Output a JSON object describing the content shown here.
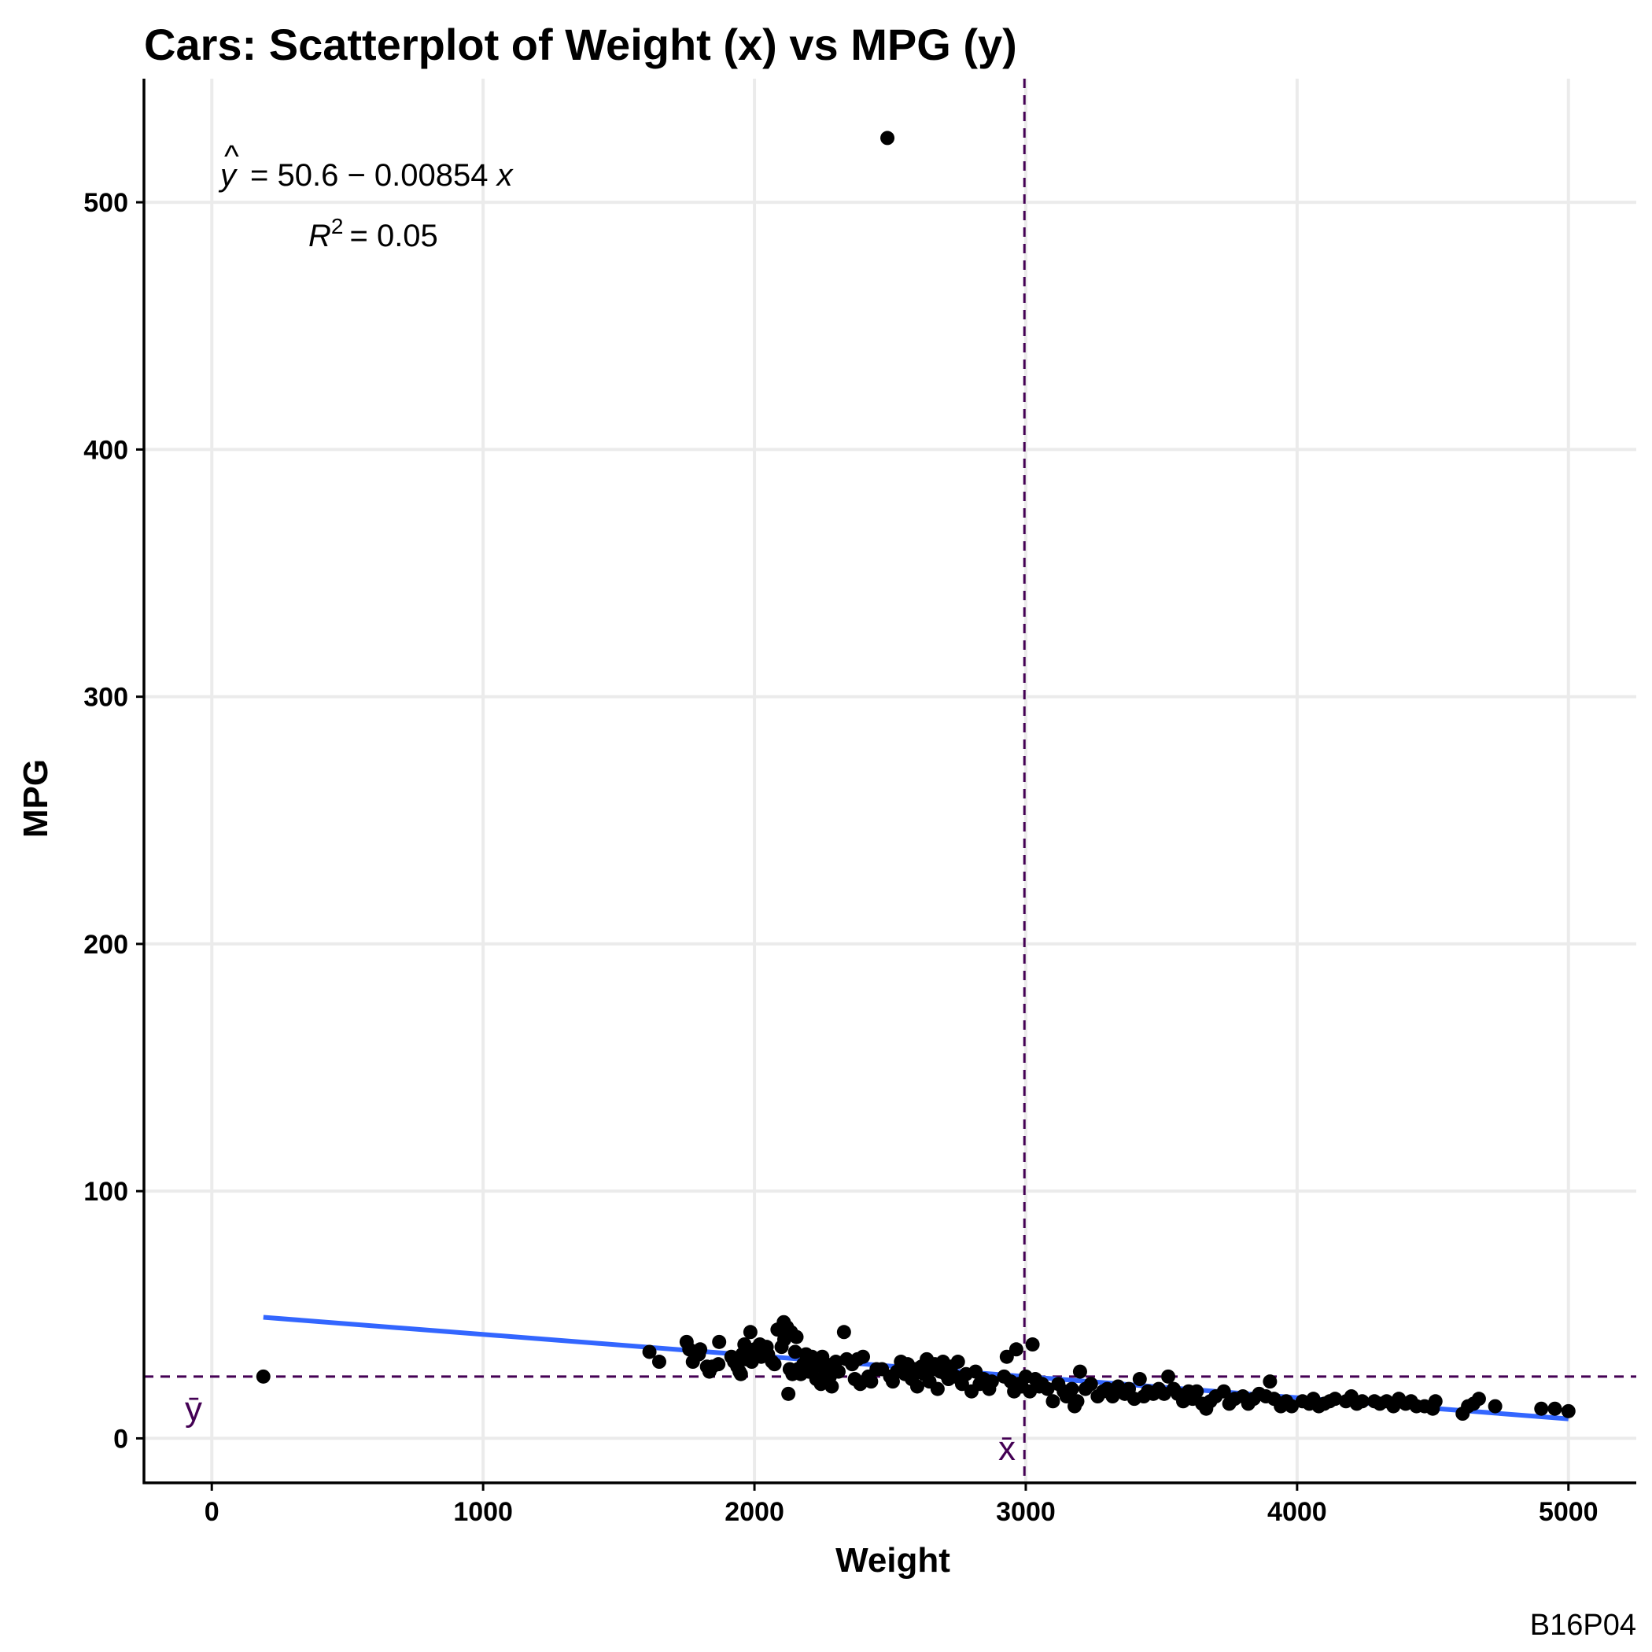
{
  "chart_data": {
    "type": "scatter",
    "title": "Cars: Scatterplot of Weight (x) vs MPG (y)",
    "xlabel": "Weight",
    "ylabel": "MPG",
    "xlim": [
      -250,
      5250
    ],
    "ylim": [
      -18,
      550
    ],
    "x_ticks": [
      0,
      1000,
      2000,
      3000,
      4000,
      5000
    ],
    "y_ticks": [
      0,
      100,
      200,
      300,
      400,
      500
    ],
    "x_tick_labels": [
      "0",
      "1000",
      "2000",
      "3000",
      "4000",
      "5000"
    ],
    "y_tick_labels": [
      "0",
      "100",
      "200",
      "300",
      "400",
      "500"
    ],
    "grid": true,
    "regression": {
      "intercept": 50.6,
      "slope": -0.00854,
      "x_range": [
        190,
        5000
      ],
      "color": "#3366ff",
      "equation_prefix": "= 50.6 − 0.00854",
      "equation_var": "x",
      "r2_prefix": "R",
      "r2_sup": "2",
      "r2_suffix": "= 0.05"
    },
    "reference_lines": {
      "x_mean": 2995,
      "y_mean": 25,
      "color": "#440154",
      "x_label": "x̄",
      "y_label": "ȳ"
    },
    "caption": "B16P04",
    "points": [
      [
        190,
        25
      ],
      [
        2490,
        526
      ],
      [
        1613,
        35
      ],
      [
        1649,
        31
      ],
      [
        1750,
        39
      ],
      [
        1760,
        36
      ],
      [
        1773,
        31
      ],
      [
        1795,
        34
      ],
      [
        1800,
        36
      ],
      [
        1825,
        29
      ],
      [
        1834,
        27
      ],
      [
        1845,
        29
      ],
      [
        1867,
        30
      ],
      [
        1870,
        39
      ],
      [
        1915,
        33
      ],
      [
        1925,
        31
      ],
      [
        1937,
        29
      ],
      [
        1945,
        27
      ],
      [
        1950,
        26
      ],
      [
        1955,
        34
      ],
      [
        1963,
        38
      ],
      [
        1968,
        32
      ],
      [
        1975,
        34
      ],
      [
        1985,
        43
      ],
      [
        1990,
        31
      ],
      [
        2000,
        36
      ],
      [
        2003,
        35
      ],
      [
        2020,
        38
      ],
      [
        2025,
        33
      ],
      [
        2045,
        37
      ],
      [
        2050,
        34
      ],
      [
        2065,
        31
      ],
      [
        2074,
        30
      ],
      [
        2085,
        44
      ],
      [
        2100,
        37
      ],
      [
        2108,
        47
      ],
      [
        2110,
        40
      ],
      [
        2120,
        45
      ],
      [
        2125,
        18
      ],
      [
        2130,
        28
      ],
      [
        2135,
        43
      ],
      [
        2140,
        26
      ],
      [
        2150,
        35
      ],
      [
        2155,
        41
      ],
      [
        2160,
        28
      ],
      [
        2171,
        26
      ],
      [
        2180,
        30
      ],
      [
        2190,
        34
      ],
      [
        2200,
        27
      ],
      [
        2212,
        33
      ],
      [
        2220,
        29
      ],
      [
        2228,
        24
      ],
      [
        2235,
        31
      ],
      [
        2245,
        22
      ],
      [
        2250,
        33
      ],
      [
        2260,
        26
      ],
      [
        2265,
        30
      ],
      [
        2278,
        25
      ],
      [
        2285,
        21
      ],
      [
        2295,
        29
      ],
      [
        2300,
        31
      ],
      [
        2310,
        27
      ],
      [
        2330,
        43
      ],
      [
        2340,
        32
      ],
      [
        2360,
        30
      ],
      [
        2370,
        24
      ],
      [
        2380,
        32
      ],
      [
        2390,
        22
      ],
      [
        2400,
        33
      ],
      [
        2420,
        25
      ],
      [
        2430,
        23
      ],
      [
        2450,
        28
      ],
      [
        2470,
        28
      ],
      [
        2500,
        25
      ],
      [
        2510,
        23
      ],
      [
        2525,
        27
      ],
      [
        2540,
        31
      ],
      [
        2555,
        26
      ],
      [
        2565,
        30
      ],
      [
        2580,
        24
      ],
      [
        2590,
        28
      ],
      [
        2600,
        21
      ],
      [
        2615,
        29
      ],
      [
        2625,
        26
      ],
      [
        2635,
        32
      ],
      [
        2645,
        23
      ],
      [
        2655,
        28
      ],
      [
        2665,
        30
      ],
      [
        2675,
        20
      ],
      [
        2685,
        27
      ],
      [
        2695,
        31
      ],
      [
        2705,
        26
      ],
      [
        2715,
        24
      ],
      [
        2725,
        29
      ],
      [
        2740,
        25
      ],
      [
        2750,
        31
      ],
      [
        2765,
        22
      ],
      [
        2780,
        26
      ],
      [
        2800,
        19
      ],
      [
        2815,
        27
      ],
      [
        2830,
        22
      ],
      [
        2845,
        24
      ],
      [
        2865,
        20
      ],
      [
        2875,
        23
      ],
      [
        2920,
        25
      ],
      [
        2930,
        33
      ],
      [
        2945,
        23
      ],
      [
        2957,
        19
      ],
      [
        2965,
        36
      ],
      [
        2975,
        22
      ],
      [
        2985,
        21
      ],
      [
        3000,
        25
      ],
      [
        3015,
        19
      ],
      [
        3025,
        38
      ],
      [
        3035,
        24
      ],
      [
        3050,
        21
      ],
      [
        3060,
        22
      ],
      [
        3080,
        20
      ],
      [
        3100,
        15
      ],
      [
        3120,
        22
      ],
      [
        3140,
        19
      ],
      [
        3150,
        17
      ],
      [
        3170,
        20
      ],
      [
        3180,
        13
      ],
      [
        3190,
        15
      ],
      [
        3200,
        27
      ],
      [
        3220,
        20
      ],
      [
        3240,
        22
      ],
      [
        3265,
        17
      ],
      [
        3285,
        19
      ],
      [
        3300,
        20
      ],
      [
        3320,
        17
      ],
      [
        3340,
        21
      ],
      [
        3365,
        18
      ],
      [
        3380,
        20
      ],
      [
        3400,
        16
      ],
      [
        3420,
        24
      ],
      [
        3435,
        17
      ],
      [
        3450,
        19
      ],
      [
        3470,
        18
      ],
      [
        3490,
        20
      ],
      [
        3510,
        18
      ],
      [
        3525,
        25
      ],
      [
        3545,
        20
      ],
      [
        3560,
        18
      ],
      [
        3580,
        15
      ],
      [
        3600,
        19
      ],
      [
        3615,
        16
      ],
      [
        3630,
        19
      ],
      [
        3650,
        14
      ],
      [
        3665,
        12
      ],
      [
        3680,
        15
      ],
      [
        3700,
        17
      ],
      [
        3730,
        19
      ],
      [
        3750,
        14
      ],
      [
        3770,
        16
      ],
      [
        3800,
        17
      ],
      [
        3820,
        14
      ],
      [
        3840,
        16
      ],
      [
        3860,
        18
      ],
      [
        3885,
        17
      ],
      [
        3900,
        23
      ],
      [
        3915,
        16
      ],
      [
        3940,
        13
      ],
      [
        3960,
        15
      ],
      [
        3980,
        13
      ],
      [
        4020,
        15
      ],
      [
        4045,
        14
      ],
      [
        4060,
        16
      ],
      [
        4080,
        13
      ],
      [
        4100,
        14
      ],
      [
        4120,
        15
      ],
      [
        4140,
        16
      ],
      [
        4180,
        15
      ],
      [
        4200,
        17
      ],
      [
        4220,
        14
      ],
      [
        4240,
        15
      ],
      [
        4285,
        15
      ],
      [
        4305,
        14
      ],
      [
        4330,
        15
      ],
      [
        4355,
        13
      ],
      [
        4375,
        16
      ],
      [
        4400,
        14
      ],
      [
        4420,
        15
      ],
      [
        4440,
        13
      ],
      [
        4470,
        13
      ],
      [
        4500,
        12
      ],
      [
        4510,
        15
      ],
      [
        4610,
        10
      ],
      [
        4630,
        13
      ],
      [
        4650,
        14
      ],
      [
        4670,
        16
      ],
      [
        4730,
        13
      ],
      [
        4900,
        12
      ],
      [
        4950,
        12
      ],
      [
        5000,
        11
      ]
    ]
  }
}
